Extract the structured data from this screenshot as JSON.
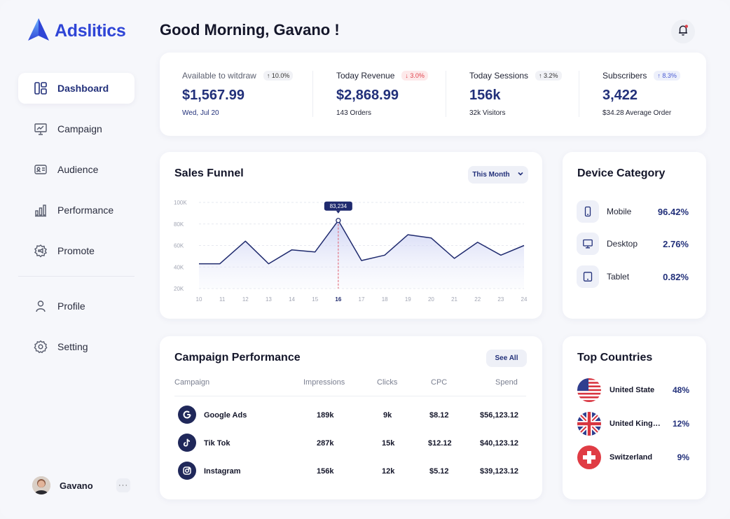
{
  "brand": {
    "name": "Adslitics",
    "logo_icon": "triangle-logo-icon",
    "accent": "#2f45d6"
  },
  "header": {
    "greeting": "Good Morning, Gavano !",
    "notification_icon": "bell-icon",
    "notification_dot_color": "#e0434c"
  },
  "sidebar": {
    "items": [
      {
        "label": "Dashboard",
        "icon": "dashboard-icon",
        "active": true
      },
      {
        "label": "Campaign",
        "icon": "presentation-icon"
      },
      {
        "label": "Audience",
        "icon": "id-card-icon"
      },
      {
        "label": "Performance",
        "icon": "bar-chart-icon"
      },
      {
        "label": "Promote",
        "icon": "megaphone-icon"
      }
    ],
    "secondary": [
      {
        "label": "Profile",
        "icon": "user-icon"
      },
      {
        "label": "Setting",
        "icon": "gear-icon"
      }
    ],
    "user": {
      "name": "Gavano",
      "more": "···"
    }
  },
  "stats": [
    {
      "label": "Available to witdraw",
      "badge": "↑ 10.0%",
      "trend": "up",
      "value": "$1,567.99",
      "sub": "Wed, Jul 20"
    },
    {
      "label": "Today Revenue",
      "badge": "↓ 3.0%",
      "trend": "down",
      "value": "$2,868.99",
      "sub": "143 Orders"
    },
    {
      "label": "Today Sessions",
      "badge": "↑ 3.2%",
      "trend": "up",
      "value": "156k",
      "sub": "32k Visitors"
    },
    {
      "label": "Subscribers",
      "badge": "↑ 8.3%",
      "trend": "upblue",
      "value": "3,422",
      "sub": "$34.28 Average Order"
    }
  ],
  "sales_funnel": {
    "title": "Sales Funnel",
    "filter": "This Month",
    "chart_data": {
      "type": "area",
      "x": [
        10,
        11,
        12,
        13,
        14,
        15,
        16,
        17,
        18,
        19,
        20,
        21,
        22,
        23,
        24
      ],
      "tick_labels": [
        "10",
        "11",
        "12",
        "13",
        "14",
        "15",
        "16",
        "17",
        "18",
        "19",
        "20",
        "21",
        "22",
        "23",
        "24"
      ],
      "y_tick_labels": [
        "100K",
        "80K",
        "60K",
        "40K",
        "20K"
      ],
      "y_ticks": [
        100000,
        80000,
        60000,
        40000,
        20000
      ],
      "ylim": [
        20000,
        100000
      ],
      "points": [
        {
          "x": 10,
          "y": 43000
        },
        {
          "x": 10.9,
          "y": 43000
        },
        {
          "x": 12,
          "y": 64000
        },
        {
          "x": 13,
          "y": 43000
        },
        {
          "x": 14,
          "y": 56000
        },
        {
          "x": 15,
          "y": 54000
        },
        {
          "x": 16,
          "y": 83234
        },
        {
          "x": 17,
          "y": 46000
        },
        {
          "x": 18,
          "y": 51000
        },
        {
          "x": 19,
          "y": 70000
        },
        {
          "x": 20,
          "y": 67000
        },
        {
          "x": 21,
          "y": 48000
        },
        {
          "x": 22,
          "y": 63000
        },
        {
          "x": 23,
          "y": 51000
        },
        {
          "x": 24,
          "y": 60000
        }
      ],
      "highlight": {
        "x": 16,
        "label": "83,234"
      },
      "highlight_x_label": "16",
      "line_color": "#1f2a6e",
      "fill_color": "#d8dcf5",
      "marker_color": "#e05a6a",
      "grid": true,
      "legend": "none",
      "title": "",
      "xlabel": "",
      "ylabel": ""
    }
  },
  "device_category": {
    "title": "Device Category",
    "items": [
      {
        "name": "Mobile",
        "value": "96.42%",
        "icon": "mobile-icon"
      },
      {
        "name": "Desktop",
        "value": "2.76%",
        "icon": "desktop-icon"
      },
      {
        "name": "Tablet",
        "value": "0.82%",
        "icon": "tablet-icon"
      }
    ]
  },
  "campaign_performance": {
    "title": "Campaign Performance",
    "see_all": "See All",
    "columns": [
      "Campaign",
      "Impressions",
      "Clicks",
      "CPC",
      "Spend"
    ],
    "rows": [
      {
        "campaign": "Google Ads",
        "icon": "google-icon",
        "impressions": "189k",
        "clicks": "9k",
        "cpc": "$8.12",
        "spend": "$56,123.12"
      },
      {
        "campaign": "Tik Tok",
        "icon": "tiktok-icon",
        "impressions": "287k",
        "clicks": "15k",
        "cpc": "$12.12",
        "spend": "$40,123.12"
      },
      {
        "campaign": "Instagram",
        "icon": "instagram-icon",
        "impressions": "156k",
        "clicks": "12k",
        "cpc": "$5.12",
        "spend": "$39,123.12"
      }
    ]
  },
  "top_countries": {
    "title": "Top Countries",
    "items": [
      {
        "name": "United State",
        "value": "48%",
        "icon": "us-flag-icon"
      },
      {
        "name": "United Kingdom",
        "value": "12%",
        "icon": "uk-flag-icon"
      },
      {
        "name": "Switzerland",
        "value": "9%",
        "icon": "switzerland-flag-icon"
      }
    ]
  }
}
